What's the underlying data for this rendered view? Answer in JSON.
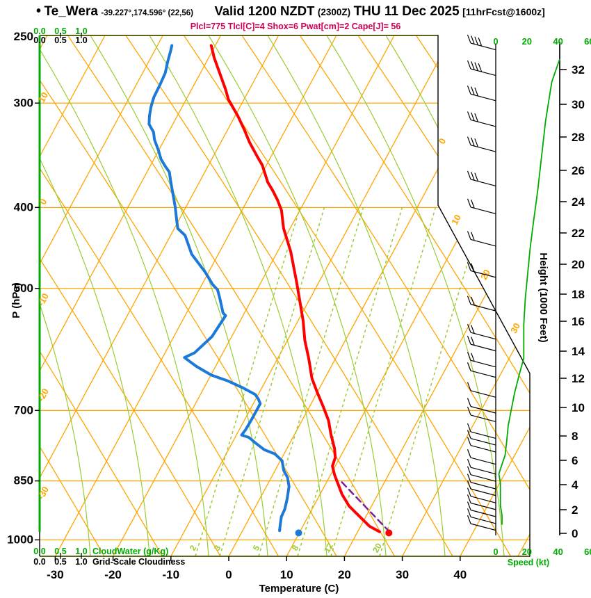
{
  "header": {
    "bullet": "•",
    "station": "Te_Wera",
    "coords": "-39.227°,174.596° (22,56)",
    "valid": "Valid 1200 NZDT",
    "valid_z": "(2300Z)",
    "date": "THU 11 Dec 2025",
    "fcst": "[11hrFcst@1600z]",
    "params": "Plcl=775 Tlcl[C]=4 Shox=6 Pwat[cm]=2 Cape[J]= 56"
  },
  "colors": {
    "grid_orange": "#FFA500",
    "mixing_green": "#99CC33",
    "axis_green": "#00AA00",
    "temp_red": "#FF0000",
    "dewpoint_blue": "#1C79D8",
    "parcel_purple": "#7B1FA2",
    "params_magenta": "#CC0055",
    "frame_olive": "#4D4D00",
    "black": "#000000"
  },
  "axes": {
    "pressure": {
      "label": "P (hPa)",
      "ticks": [
        "250",
        "300",
        "400",
        "500",
        "700",
        "850",
        "1000"
      ]
    },
    "temperature": {
      "label": "Temperature (C)",
      "ticks": [
        "-30",
        "-20",
        "-10",
        "0",
        "10",
        "20",
        "30",
        "40"
      ]
    },
    "height": {
      "label": "Height (1000 Feet)",
      "ticks": [
        "32",
        "30",
        "28",
        "26",
        "24",
        "22",
        "20",
        "18",
        "16",
        "14",
        "12",
        "10",
        "8",
        "6",
        "4",
        "2",
        "0"
      ]
    },
    "speed": {
      "label": "Speed (kt)",
      "ticks": [
        "0",
        "20",
        "40",
        "60"
      ]
    },
    "cloudwater": {
      "label": "CloudWater (g/Kg)",
      "ticks": [
        "0.0",
        "0.5",
        "1.0"
      ]
    },
    "cloudiness": {
      "label": "Grid-Scale Cloudiness",
      "ticks": [
        "0.0",
        "0.5",
        "1.0"
      ]
    },
    "mixing_ratio_labels": [
      "2",
      "3",
      "5",
      "8",
      "12",
      "20"
    ],
    "isotherm_labels_left": [
      "10",
      "0",
      "-10",
      "-20",
      "-30"
    ],
    "isotherm_labels_right": [
      "0",
      "10",
      "20",
      "30"
    ]
  },
  "chart_data": {
    "type": "skewt-logp",
    "title": "Te_Wera sounding, valid 1200 NZDT (2300Z) THU 11 Dec 2025, 11 hr forecast from 1600z",
    "pressure_axis_hpa": [
      250,
      300,
      400,
      500,
      700,
      850,
      1000
    ],
    "temperature_axis_c": [
      -30,
      -20,
      -10,
      0,
      10,
      20,
      30,
      40
    ],
    "height_axis_kft": [
      0,
      2,
      4,
      6,
      8,
      10,
      12,
      14,
      16,
      18,
      20,
      22,
      24,
      26,
      28,
      30,
      32
    ],
    "speed_axis_kt": [
      0,
      20,
      40,
      60
    ],
    "indices": {
      "Plcl": 775,
      "Tlcl_C": 4,
      "Shox": 6,
      "Pwat_cm": 2,
      "Cape_J": 56
    },
    "surface": {
      "pressure_hpa": 981,
      "temperature_c": 25.5,
      "dewpoint_c": 9.9
    },
    "series": [
      {
        "name": "temperature",
        "units": [
          "hPa",
          "C"
        ],
        "points": [
          [
            256,
            -50.7
          ],
          [
            265,
            -49.0
          ],
          [
            276,
            -46.7
          ],
          [
            289,
            -44.1
          ],
          [
            297,
            -42.7
          ],
          [
            311,
            -39.5
          ],
          [
            323,
            -37.1
          ],
          [
            334,
            -35.1
          ],
          [
            347,
            -32.5
          ],
          [
            356,
            -30.7
          ],
          [
            373,
            -28.2
          ],
          [
            382,
            -26.5
          ],
          [
            392,
            -24.8
          ],
          [
            403,
            -23.2
          ],
          [
            424,
            -21.1
          ],
          [
            452,
            -17.7
          ],
          [
            491,
            -13.9
          ],
          [
            517,
            -11.6
          ],
          [
            547,
            -9.1
          ],
          [
            577,
            -7.0
          ],
          [
            607,
            -4.6
          ],
          [
            641,
            -2.2
          ],
          [
            666,
            0.0
          ],
          [
            693,
            2.4
          ],
          [
            720,
            4.6
          ],
          [
            748,
            6.3
          ],
          [
            777,
            8.2
          ],
          [
            797,
            9.2
          ],
          [
            816,
            9.5
          ],
          [
            836,
            10.7
          ],
          [
            858,
            12.2
          ],
          [
            882,
            13.8
          ],
          [
            911,
            16.1
          ],
          [
            963,
            21.5
          ],
          [
            978,
            23.8
          ]
        ]
      },
      {
        "name": "dewpoint",
        "units": [
          "hPa",
          "C"
        ],
        "points": [
          [
            256,
            -57.5
          ],
          [
            260,
            -57.2
          ],
          [
            268,
            -56.7
          ],
          [
            276,
            -56.1
          ],
          [
            285,
            -55.9
          ],
          [
            295,
            -55.8
          ],
          [
            303,
            -55.4
          ],
          [
            311,
            -54.8
          ],
          [
            318,
            -54.1
          ],
          [
            325,
            -52.6
          ],
          [
            332,
            -51.7
          ],
          [
            342,
            -50.0
          ],
          [
            350,
            -48.8
          ],
          [
            356,
            -47.6
          ],
          [
            363,
            -46.1
          ],
          [
            370,
            -45.3
          ],
          [
            380,
            -44.1
          ],
          [
            392,
            -42.7
          ],
          [
            400,
            -41.8
          ],
          [
            408,
            -41.0
          ],
          [
            416,
            -40.2
          ],
          [
            424,
            -39.4
          ],
          [
            432,
            -37.5
          ],
          [
            455,
            -34.6
          ],
          [
            478,
            -30.6
          ],
          [
            495,
            -28.1
          ],
          [
            502,
            -26.8
          ],
          [
            512,
            -25.8
          ],
          [
            535,
            -23.7
          ],
          [
            539,
            -23.0
          ],
          [
            571,
            -23.4
          ],
          [
            597,
            -24.9
          ],
          [
            605,
            -26.2
          ],
          [
            620,
            -23.3
          ],
          [
            635,
            -19.9
          ],
          [
            645,
            -16.6
          ],
          [
            658,
            -13.2
          ],
          [
            670,
            -10.5
          ],
          [
            679,
            -9.5
          ],
          [
            687,
            -8.8
          ],
          [
            714,
            -8.8
          ],
          [
            738,
            -8.9
          ],
          [
            749,
            -9.1
          ],
          [
            754,
            -7.6
          ],
          [
            766,
            -5.9
          ],
          [
            780,
            -3.8
          ],
          [
            789,
            -1.6
          ],
          [
            804,
            0.3
          ],
          [
            826,
            1.5
          ],
          [
            842,
            2.8
          ],
          [
            863,
            3.9
          ],
          [
            892,
            4.7
          ],
          [
            919,
            5.3
          ],
          [
            938,
            5.4
          ],
          [
            957,
            5.9
          ],
          [
            975,
            6.4
          ]
        ]
      },
      {
        "name": "parcel_path",
        "units": [
          "hPa",
          "C"
        ],
        "points": [
          [
            978,
            25.5
          ],
          [
            850,
            12.3
          ]
        ]
      },
      {
        "name": "wind_speed",
        "units": [
          "hPa",
          "kt"
        ],
        "points": [
          [
            266,
            41
          ],
          [
            283,
            36
          ],
          [
            315,
            32
          ],
          [
            340,
            30
          ],
          [
            381,
            27
          ],
          [
            419,
            24
          ],
          [
            449,
            22
          ],
          [
            513,
            19
          ],
          [
            553,
            18
          ],
          [
            606,
            18
          ],
          [
            635,
            15
          ],
          [
            668,
            12
          ],
          [
            698,
            10
          ],
          [
            730,
            8
          ],
          [
            763,
            7
          ],
          [
            792,
            6
          ],
          [
            823,
            3
          ],
          [
            834,
            2
          ],
          [
            855,
            3
          ],
          [
            883,
            3
          ],
          [
            910,
            3
          ],
          [
            935,
            4
          ],
          [
            958,
            4
          ]
        ]
      }
    ],
    "wind_barb_levels_hpa": [
      259,
      278,
      298,
      320,
      343,
      377,
      407,
      445,
      485,
      532,
      575,
      594,
      621,
      639,
      675,
      705,
      722,
      756,
      770,
      785,
      812,
      834,
      851,
      869,
      885,
      903,
      920,
      938,
      956,
      974
    ],
    "mixing_ratio_lines_gkg": [
      2,
      3,
      5,
      8,
      12,
      20
    ],
    "cloudwater_profile_gkg": 0,
    "layout_hints": {
      "grid": "skewed isotherms + dry/moist adiabats + mixing ratio lines",
      "legend_position": "none",
      "pressure_scale": "log"
    }
  }
}
